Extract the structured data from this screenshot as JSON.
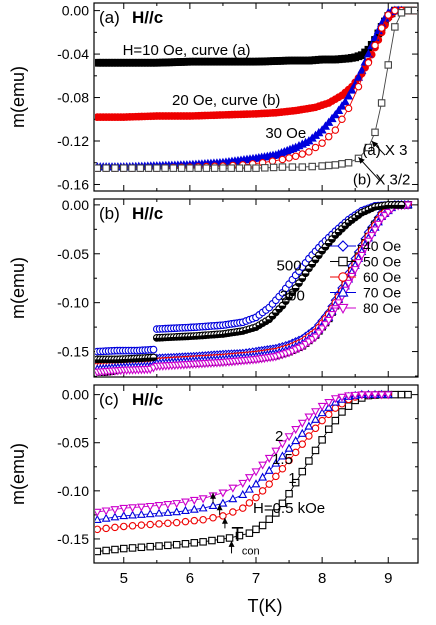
{
  "figure": {
    "xlabel": "T(K)",
    "x_ticks": [
      5,
      6,
      7,
      8,
      9
    ],
    "xlim": [
      4.55,
      9.45
    ]
  },
  "chart_data": [
    {
      "type": "scatter",
      "panel_label": "(a)",
      "field_label": "H//c",
      "ylabel": "m(emu)",
      "ylim": [
        -0.166,
        0.007
      ],
      "y_ticks": [
        0.0,
        -0.04,
        -0.08,
        -0.12,
        -0.16
      ],
      "y_tick_labels": [
        "0.00",
        "-0.04",
        "-0.08",
        "-0.12",
        "-0.16"
      ],
      "annotations": [
        {
          "text": "H=10 Oe, curve (a)",
          "x": 5.95,
          "y": -0.041
        },
        {
          "text": "20 Oe, curve (b)",
          "x": 6.55,
          "y": -0.087
        },
        {
          "text": "30 Oe",
          "x": 7.45,
          "y": -0.117
        },
        {
          "text": "(a) X 3",
          "x": 8.95,
          "y": -0.133
        },
        {
          "text": "(b) X 3/2",
          "x": 8.9,
          "y": -0.16
        }
      ],
      "arrows": [
        {
          "from": [
            8.95,
            -0.133
          ],
          "to": [
            8.75,
            -0.12
          ]
        },
        {
          "from": [
            8.88,
            -0.157
          ],
          "to": [
            8.55,
            -0.135
          ]
        }
      ],
      "series": [
        {
          "marker": "square-filled",
          "color": "#000000",
          "x": [
            4.6,
            5,
            5.5,
            6,
            6.5,
            7,
            7.5,
            7.8,
            8,
            8.2,
            8.4,
            8.5,
            8.6,
            8.7,
            8.8,
            8.9,
            9.0,
            9.1,
            9.2,
            9.4
          ],
          "y": [
            -0.048,
            -0.048,
            -0.048,
            -0.047,
            -0.047,
            -0.047,
            -0.046,
            -0.046,
            -0.045,
            -0.045,
            -0.044,
            -0.043,
            -0.041,
            -0.036,
            -0.027,
            -0.015,
            -0.005,
            0,
            0,
            0
          ]
        },
        {
          "marker": "circle-filled",
          "color": "#ee0000",
          "x": [
            4.6,
            5,
            5.5,
            6,
            6.5,
            7,
            7.3,
            7.6,
            7.9,
            8.1,
            8.3,
            8.45,
            8.6,
            8.7,
            8.8,
            8.9,
            9.0,
            9.1,
            9.2,
            9.4
          ],
          "y": [
            -0.098,
            -0.098,
            -0.097,
            -0.097,
            -0.096,
            -0.095,
            -0.094,
            -0.092,
            -0.089,
            -0.085,
            -0.078,
            -0.07,
            -0.058,
            -0.047,
            -0.034,
            -0.02,
            -0.007,
            0,
            0,
            0
          ]
        },
        {
          "marker": "triangle-up-filled",
          "color": "#0000dd",
          "x": [
            4.6,
            5,
            5.5,
            6,
            6.5,
            7,
            7.3,
            7.6,
            7.8,
            8.0,
            8.2,
            8.35,
            8.5,
            8.6,
            8.7,
            8.8,
            8.9,
            9.0,
            9.1,
            9.2
          ],
          "y": [
            -0.144,
            -0.144,
            -0.143,
            -0.142,
            -0.14,
            -0.136,
            -0.133,
            -0.126,
            -0.12,
            -0.11,
            -0.096,
            -0.084,
            -0.068,
            -0.055,
            -0.04,
            -0.025,
            -0.012,
            -0.002,
            0,
            0
          ]
        },
        {
          "marker": "circle-open",
          "color": "#ee0000",
          "x": [
            4.6,
            5,
            5.5,
            6,
            6.5,
            6.8,
            7.1,
            7.4,
            7.6,
            7.8,
            8.0,
            8.2,
            8.4,
            8.55,
            8.7,
            8.8,
            8.9,
            9.0,
            9.1,
            9.2
          ],
          "y": [
            -0.145,
            -0.145,
            -0.145,
            -0.144,
            -0.143,
            -0.142,
            -0.14,
            -0.137,
            -0.134,
            -0.13,
            -0.122,
            -0.11,
            -0.09,
            -0.07,
            -0.048,
            -0.032,
            -0.016,
            -0.004,
            0,
            0
          ]
        },
        {
          "marker": "square-open",
          "color": "#444444",
          "x": [
            4.6,
            5,
            5.5,
            6,
            6.5,
            7,
            7.4,
            7.7,
            8.0,
            8.2,
            8.4,
            8.55,
            8.7,
            8.8,
            8.9,
            9.0,
            9.1,
            9.2,
            9.3,
            9.4
          ],
          "y": [
            -0.145,
            -0.145,
            -0.145,
            -0.145,
            -0.145,
            -0.145,
            -0.144,
            -0.144,
            -0.143,
            -0.142,
            -0.14,
            -0.136,
            -0.126,
            -0.112,
            -0.085,
            -0.05,
            -0.015,
            -0.002,
            0,
            0
          ]
        }
      ]
    },
    {
      "type": "scatter",
      "panel_label": "(b)",
      "field_label": "H//c",
      "ylabel": "m(emu)",
      "ylim": [
        -0.176,
        0.006
      ],
      "y_ticks": [
        0.0,
        -0.05,
        -0.1,
        -0.15
      ],
      "y_tick_labels": [
        "0.00",
        "-0.05",
        "-0.10",
        "-0.15"
      ],
      "legend_position": "lower-right",
      "annotations": [
        {
          "text": "500",
          "x": 7.5,
          "y": -0.067
        },
        {
          "text": "300",
          "x": 7.55,
          "y": -0.098
        }
      ],
      "series": [
        {
          "name": "40 Oe",
          "marker": "diamond-open",
          "color": "#0000dd",
          "x": [
            4.6,
            4.9,
            5.2,
            5.45,
            5.5,
            5.8,
            6.1,
            6.5,
            6.8,
            7.0,
            7.3,
            7.5,
            7.7,
            7.9,
            8.1,
            8.3,
            8.5,
            8.7,
            8.9,
            9.1,
            9.3
          ],
          "y": [
            -0.163,
            -0.162,
            -0.161,
            -0.16,
            -0.157,
            -0.156,
            -0.155,
            -0.153,
            -0.152,
            -0.15,
            -0.147,
            -0.143,
            -0.137,
            -0.127,
            -0.11,
            -0.085,
            -0.055,
            -0.028,
            -0.008,
            0,
            0
          ]
        },
        {
          "name": "50 Oe",
          "marker": "square-open",
          "color": "#000000",
          "x": [
            4.6,
            4.8,
            5.0,
            5.2,
            5.4,
            5.5,
            6.0,
            6.5,
            7.0,
            7.3,
            7.5,
            7.7,
            7.9,
            8.1,
            8.3,
            8.5,
            8.6,
            8.8,
            9.0,
            9.1,
            9.3
          ],
          "y": [
            -0.172,
            -0.17,
            -0.167,
            -0.166,
            -0.165,
            -0.163,
            -0.162,
            -0.16,
            -0.157,
            -0.154,
            -0.15,
            -0.144,
            -0.133,
            -0.116,
            -0.09,
            -0.06,
            -0.045,
            -0.02,
            -0.003,
            0,
            0
          ]
        },
        {
          "name": "60 Oe",
          "marker": "circle-open",
          "color": "#ee0000",
          "x": [
            4.6,
            5.0,
            5.4,
            5.5,
            6.0,
            6.5,
            7.0,
            7.3,
            7.5,
            7.7,
            7.9,
            8.1,
            8.3,
            8.5,
            8.7,
            8.9,
            9.1,
            9.3
          ],
          "y": [
            -0.165,
            -0.164,
            -0.163,
            -0.16,
            -0.158,
            -0.156,
            -0.153,
            -0.15,
            -0.146,
            -0.14,
            -0.13,
            -0.112,
            -0.088,
            -0.06,
            -0.032,
            -0.01,
            0,
            0
          ]
        },
        {
          "name": "70 Oe",
          "marker": "triangle-up-open",
          "color": "#0000dd",
          "x": [
            4.6,
            5.0,
            5.4,
            5.5,
            6.0,
            6.5,
            7.0,
            7.3,
            7.5,
            7.7,
            7.9,
            8.1,
            8.3,
            8.5,
            8.7,
            8.9,
            9.1,
            9.3
          ],
          "y": [
            -0.168,
            -0.166,
            -0.165,
            -0.162,
            -0.16,
            -0.158,
            -0.155,
            -0.152,
            -0.148,
            -0.142,
            -0.132,
            -0.115,
            -0.09,
            -0.062,
            -0.034,
            -0.012,
            0,
            0
          ]
        },
        {
          "name": "80 Oe",
          "marker": "triangle-down-open",
          "color": "#cc00cc",
          "x": [
            4.6,
            5.0,
            5.4,
            5.5,
            6.0,
            6.5,
            7.0,
            7.3,
            7.5,
            7.7,
            7.9,
            8.1,
            8.3,
            8.5,
            8.7,
            8.9,
            9.1,
            9.3
          ],
          "y": [
            -0.171,
            -0.169,
            -0.168,
            -0.165,
            -0.163,
            -0.161,
            -0.158,
            -0.155,
            -0.151,
            -0.145,
            -0.135,
            -0.118,
            -0.094,
            -0.066,
            -0.037,
            -0.014,
            -0.001,
            0
          ]
        },
        {
          "marker": "circle-open",
          "color": "#0000dd",
          "x": [
            4.6,
            4.9,
            5.2,
            5.45,
            5.5,
            5.8,
            6.1,
            6.5,
            6.8,
            7.0,
            7.2,
            7.4,
            7.6,
            7.8,
            8.0,
            8.2,
            8.4,
            8.6,
            8.8,
            9.0,
            9.2
          ],
          "y": [
            -0.15,
            -0.149,
            -0.149,
            -0.148,
            -0.127,
            -0.126,
            -0.125,
            -0.123,
            -0.12,
            -0.115,
            -0.105,
            -0.09,
            -0.072,
            -0.055,
            -0.04,
            -0.027,
            -0.015,
            -0.006,
            -0.001,
            0,
            0
          ]
        },
        {
          "marker": "half-filled-circle",
          "color": "#000000",
          "x": [
            4.6,
            4.9,
            5.2,
            5.45,
            5.5,
            5.8,
            6.1,
            6.5,
            6.8,
            7.0,
            7.2,
            7.4,
            7.6,
            7.8,
            8.0,
            8.2,
            8.4,
            8.6,
            8.8,
            9.0,
            9.2
          ],
          "y": [
            -0.158,
            -0.158,
            -0.157,
            -0.156,
            -0.136,
            -0.135,
            -0.134,
            -0.132,
            -0.129,
            -0.125,
            -0.117,
            -0.103,
            -0.085,
            -0.065,
            -0.047,
            -0.031,
            -0.018,
            -0.008,
            -0.002,
            0,
            0
          ]
        }
      ]
    },
    {
      "type": "scatter",
      "panel_label": "(c)",
      "field_label": "H//c",
      "ylabel": "m(emu)",
      "ylim": [
        -0.175,
        0.01
      ],
      "y_ticks": [
        0.0,
        -0.05,
        -0.1,
        -0.15
      ],
      "y_tick_labels": [
        "0.00",
        "-0.05",
        "-0.10",
        "-0.15"
      ],
      "annotations": [
        {
          "text": "2",
          "x": 7.35,
          "y": -0.048
        },
        {
          "text": "1.5",
          "x": 7.4,
          "y": -0.072
        },
        {
          "text": "1",
          "x": 7.55,
          "y": -0.092
        },
        {
          "text": "H=0.5 kOe",
          "x": 7.5,
          "y": -0.123
        },
        {
          "text": "T",
          "x": 6.72,
          "y": -0.152
        },
        {
          "text": "con",
          "x": 6.92,
          "y": -0.166
        }
      ],
      "arrows": [
        {
          "from": [
            6.35,
            -0.113
          ],
          "to": [
            6.35,
            -0.102
          ]
        },
        {
          "from": [
            6.45,
            -0.125
          ],
          "to": [
            6.45,
            -0.114
          ]
        },
        {
          "from": [
            6.53,
            -0.139
          ],
          "to": [
            6.53,
            -0.128
          ]
        },
        {
          "from": [
            6.63,
            -0.165
          ],
          "to": [
            6.63,
            -0.152
          ]
        }
      ],
      "series": [
        {
          "name": "H=0.5 kOe",
          "marker": "square-open",
          "color": "#000000",
          "x": [
            4.6,
            5.0,
            5.4,
            5.8,
            6.2,
            6.6,
            6.9,
            7.1,
            7.3,
            7.5,
            7.7,
            7.9,
            8.1,
            8.3,
            8.5,
            8.7,
            8.9,
            9.1,
            9.3
          ],
          "y": [
            -0.163,
            -0.16,
            -0.158,
            -0.156,
            -0.153,
            -0.149,
            -0.144,
            -0.136,
            -0.123,
            -0.103,
            -0.08,
            -0.058,
            -0.036,
            -0.018,
            -0.006,
            -0.001,
            0,
            0,
            0
          ]
        },
        {
          "name": "1",
          "marker": "circle-open",
          "color": "#ee0000",
          "x": [
            4.6,
            5.0,
            5.4,
            5.8,
            6.2,
            6.5,
            6.8,
            7.0,
            7.2,
            7.4,
            7.6,
            7.8,
            8.0,
            8.2,
            8.4,
            8.6,
            8.8,
            9.0
          ],
          "y": [
            -0.14,
            -0.137,
            -0.135,
            -0.133,
            -0.13,
            -0.126,
            -0.118,
            -0.107,
            -0.093,
            -0.077,
            -0.06,
            -0.043,
            -0.027,
            -0.014,
            -0.005,
            0,
            0,
            0
          ]
        },
        {
          "name": "1.5",
          "marker": "triangle-up-open",
          "color": "#0000dd",
          "x": [
            4.6,
            5.0,
            5.4,
            5.8,
            6.2,
            6.5,
            6.8,
            7.0,
            7.2,
            7.4,
            7.6,
            7.8,
            8.0,
            8.2,
            8.4,
            8.6,
            8.8,
            9.0
          ],
          "y": [
            -0.13,
            -0.126,
            -0.124,
            -0.122,
            -0.118,
            -0.113,
            -0.104,
            -0.093,
            -0.079,
            -0.064,
            -0.048,
            -0.033,
            -0.019,
            -0.008,
            -0.002,
            0,
            0,
            0
          ]
        },
        {
          "name": "2",
          "marker": "triangle-down-open",
          "color": "#cc00cc",
          "x": [
            4.6,
            5.0,
            5.4,
            5.8,
            6.2,
            6.5,
            6.8,
            7.0,
            7.2,
            7.4,
            7.6,
            7.8,
            8.0,
            8.2,
            8.4,
            8.6,
            8.8,
            9.0
          ],
          "y": [
            -0.122,
            -0.118,
            -0.116,
            -0.113,
            -0.108,
            -0.102,
            -0.092,
            -0.08,
            -0.066,
            -0.051,
            -0.036,
            -0.023,
            -0.012,
            -0.004,
            -0.001,
            0,
            0,
            0
          ]
        }
      ]
    }
  ]
}
